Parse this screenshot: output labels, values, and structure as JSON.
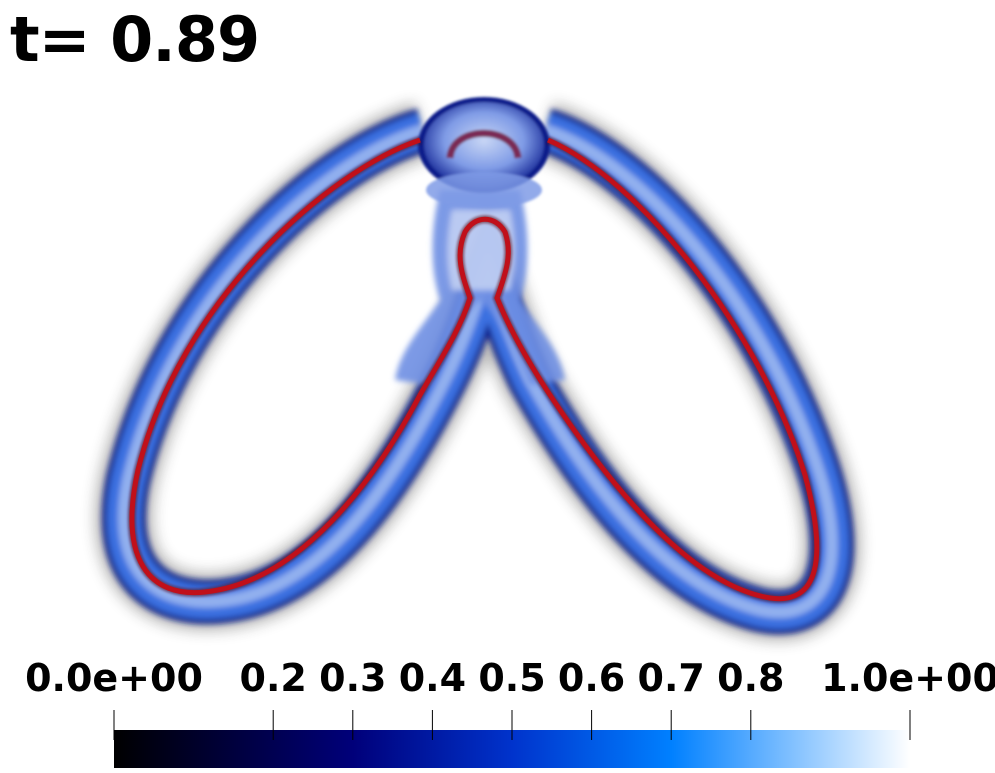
{
  "time_label": "t= 0.89",
  "colorbar": {
    "tick_labels": [
      "0.0e+00",
      "0.2",
      "0.3",
      "0.4",
      "0.5",
      "0.6",
      "0.7",
      "0.8",
      "1.0e+00"
    ],
    "tick_values": [
      0.0,
      0.2,
      0.3,
      0.4,
      0.5,
      0.6,
      0.7,
      0.8,
      1.0
    ],
    "range": [
      0.0,
      1.0
    ],
    "gradient_stops": [
      {
        "value": 0.0,
        "color": "#000000"
      },
      {
        "value": 0.3,
        "color": "#00007a"
      },
      {
        "value": 0.5,
        "color": "#0033cc"
      },
      {
        "value": 0.7,
        "color": "#0080ff"
      },
      {
        "value": 1.0,
        "color": "#ffffff"
      }
    ]
  },
  "colors": {
    "interface_line": "#c0101a",
    "field_blue": "#3a6fe0",
    "field_dark": "#0a1f8a"
  }
}
